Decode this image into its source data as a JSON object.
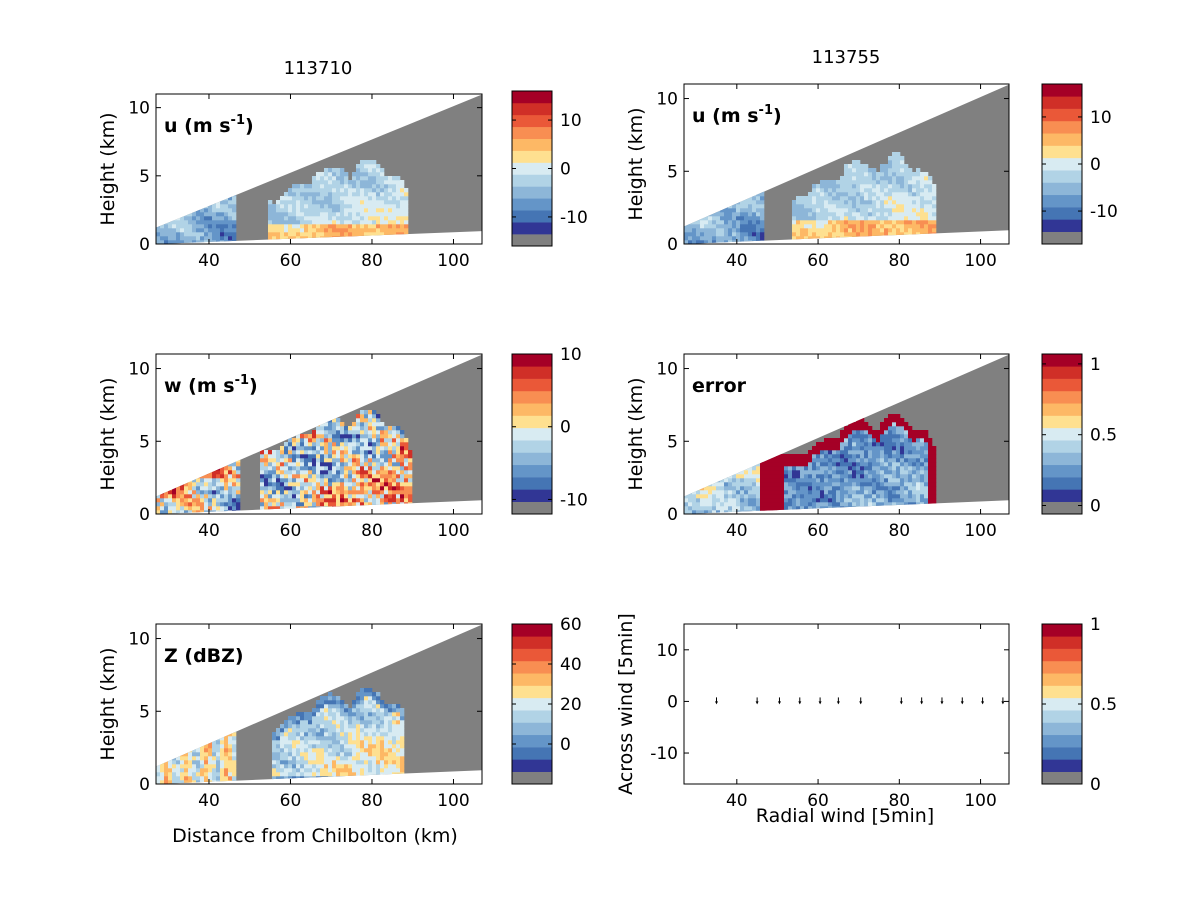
{
  "figure": {
    "column_titles": [
      "113710",
      "113755"
    ],
    "xlabel_bottom_left": "Distance from Chilbolton (km)",
    "xlabel_bottom_right": "Radial wind [5min]"
  },
  "colormap": {
    "blank": "#808080",
    "levels": [
      "#313695",
      "#4575b4",
      "#6495c8",
      "#8db6d8",
      "#b1d3e6",
      "#d8ebf2",
      "#fee090",
      "#fdb865",
      "#f88e52",
      "#ea5838",
      "#d02f27",
      "#a50026"
    ]
  },
  "chart_data": [
    {
      "type": "heatmap",
      "panel": "u-113710",
      "label": "u (m s",
      "label_sup": "-1",
      "label_close": ")",
      "ylabel": "Height (km)",
      "xlabel": "",
      "xlim": [
        27,
        107
      ],
      "ylim": [
        0,
        11
      ],
      "xticks": [
        "40",
        "60",
        "80",
        "100"
      ],
      "yticks": [
        "0",
        "5",
        "10"
      ],
      "colorbar": {
        "range": [
          -16,
          16
        ],
        "ticks": [
          {
            "v": 10,
            "label": "10"
          },
          {
            "v": 0,
            "label": "0"
          },
          {
            "v": -10,
            "label": "-10"
          }
        ]
      },
      "field": "u"
    },
    {
      "type": "heatmap",
      "panel": "u-113755",
      "label": "u (m s",
      "label_sup": "-1",
      "label_close": ")",
      "ylabel": "Height (km)",
      "xlabel": "",
      "xlim": [
        27,
        107
      ],
      "ylim": [
        0,
        11
      ],
      "xticks": [
        "40",
        "60",
        "80",
        "100"
      ],
      "yticks": [
        "0",
        "5",
        "10"
      ],
      "colorbar": {
        "range": [
          -17,
          17
        ],
        "ticks": [
          {
            "v": 10,
            "label": "10"
          },
          {
            "v": 0,
            "label": "0"
          },
          {
            "v": -10,
            "label": "-10"
          }
        ]
      },
      "field": "u"
    },
    {
      "type": "heatmap",
      "panel": "w-113710",
      "label": "w (m s",
      "label_sup": "-1",
      "label_close": ")",
      "ylabel": "Height (km)",
      "xlabel": "",
      "xlim": [
        27,
        107
      ],
      "ylim": [
        0,
        11
      ],
      "xticks": [
        "40",
        "60",
        "80",
        "100"
      ],
      "yticks": [
        "0",
        "5",
        "10"
      ],
      "colorbar": {
        "range": [
          -12,
          10
        ],
        "ticks": [
          {
            "v": 10,
            "label": "10"
          },
          {
            "v": 0,
            "label": "0"
          },
          {
            "v": -10,
            "label": "-10"
          }
        ]
      },
      "field": "w"
    },
    {
      "type": "heatmap",
      "panel": "error-113755",
      "label": "error",
      "label_sup": "",
      "label_close": "",
      "ylabel": "Height (km)",
      "xlabel": "",
      "xlim": [
        27,
        107
      ],
      "ylim": [
        0,
        11
      ],
      "xticks": [
        "40",
        "60",
        "80",
        "100"
      ],
      "yticks": [
        "0",
        "5",
        "10"
      ],
      "colorbar": {
        "range": [
          -0.06,
          1.07
        ],
        "ticks": [
          {
            "v": 1,
            "label": "1"
          },
          {
            "v": 0.5,
            "label": "0.5"
          },
          {
            "v": 0,
            "label": "0"
          }
        ]
      },
      "field": "error"
    },
    {
      "type": "heatmap",
      "panel": "Z-113710",
      "label": "Z (dBZ)",
      "label_sup": "",
      "label_close": "",
      "ylabel": "Height (km)",
      "xlabel": "Distance from Chilbolton (km)",
      "xlim": [
        27,
        107
      ],
      "ylim": [
        0,
        11
      ],
      "xticks": [
        "40",
        "60",
        "80",
        "100"
      ],
      "yticks": [
        "0",
        "5",
        "10"
      ],
      "colorbar": {
        "range": [
          -20,
          60
        ],
        "ticks": [
          {
            "v": 60,
            "label": "60"
          },
          {
            "v": 40,
            "label": "40"
          },
          {
            "v": 20,
            "label": "20"
          },
          {
            "v": 0,
            "label": "0"
          }
        ]
      },
      "field": "Z"
    },
    {
      "type": "scatter",
      "panel": "wind-113755",
      "label": "",
      "label_sup": "",
      "label_close": "",
      "ylabel": "Across wind [5min]",
      "xlabel": "Radial wind [5min]",
      "xlim": [
        27,
        107
      ],
      "ylim": [
        -16,
        15
      ],
      "xticks": [
        "40",
        "60",
        "80",
        "100"
      ],
      "yticks": [
        "10",
        "0",
        "-10"
      ],
      "colorbar": {
        "range": [
          0,
          1
        ],
        "ticks": [
          {
            "v": 1,
            "label": "1"
          },
          {
            "v": 0.5,
            "label": "0.5"
          },
          {
            "v": 0,
            "label": "0"
          }
        ]
      },
      "points": {
        "x": [
          35,
          45,
          50.5,
          55.5,
          60.5,
          65,
          70.5,
          80.5,
          85.5,
          90.5,
          95.5,
          100.5,
          105.5
        ],
        "y": [
          0,
          0,
          0,
          0,
          0,
          0,
          0,
          0,
          0,
          0,
          0,
          0,
          0
        ]
      }
    }
  ]
}
